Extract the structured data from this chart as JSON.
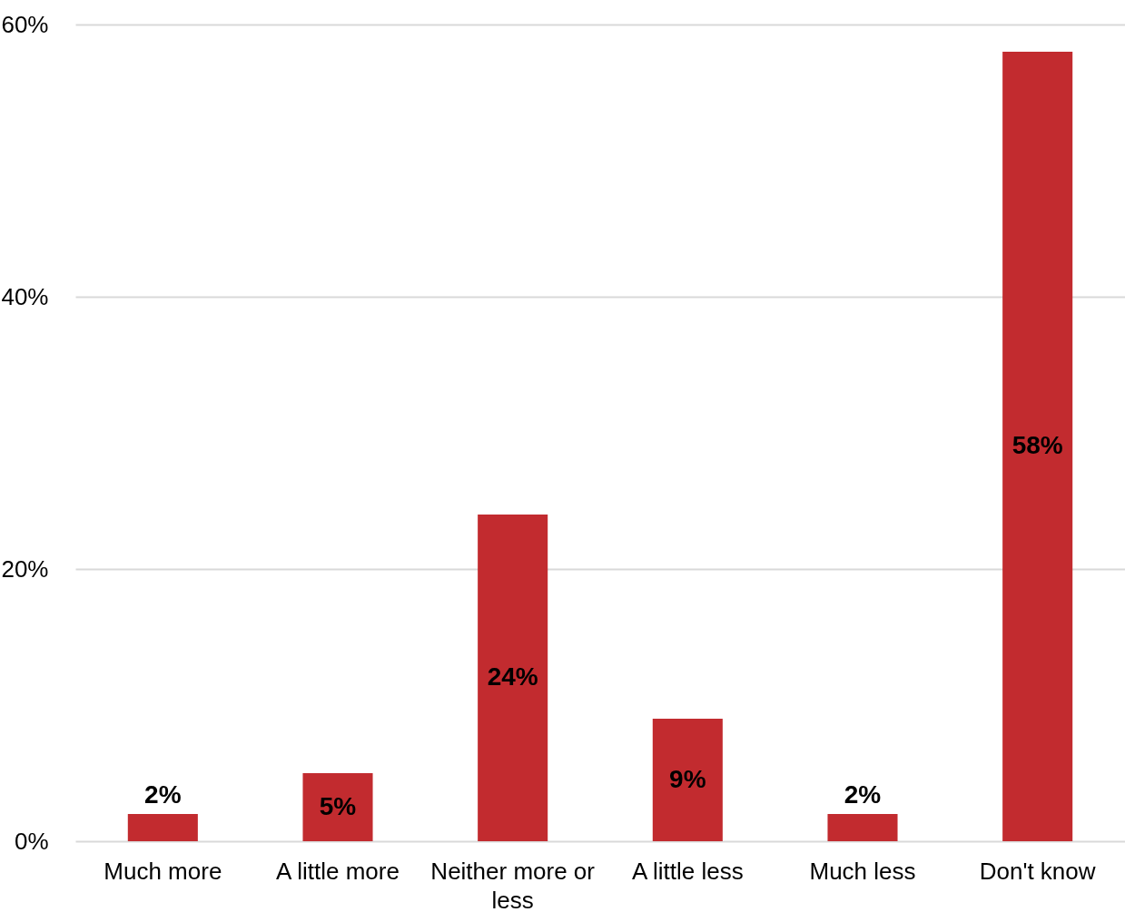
{
  "chart_data": {
    "type": "bar",
    "categories": [
      "Much more",
      "A little more",
      "Neither more or less",
      "A little less",
      "Much less",
      "Don't know"
    ],
    "values": [
      2,
      5,
      24,
      9,
      2,
      58
    ],
    "value_labels": [
      "2%",
      "5%",
      "24%",
      "9%",
      "2%",
      "58%"
    ],
    "color": "#c22b2f",
    "ylim": [
      0,
      60
    ],
    "yticks": [
      {
        "value": 0,
        "label": "0%"
      },
      {
        "value": 20,
        "label": "20%"
      },
      {
        "value": 40,
        "label": "40%"
      },
      {
        "value": 60,
        "label": "60%"
      }
    ],
    "grid": "y"
  }
}
